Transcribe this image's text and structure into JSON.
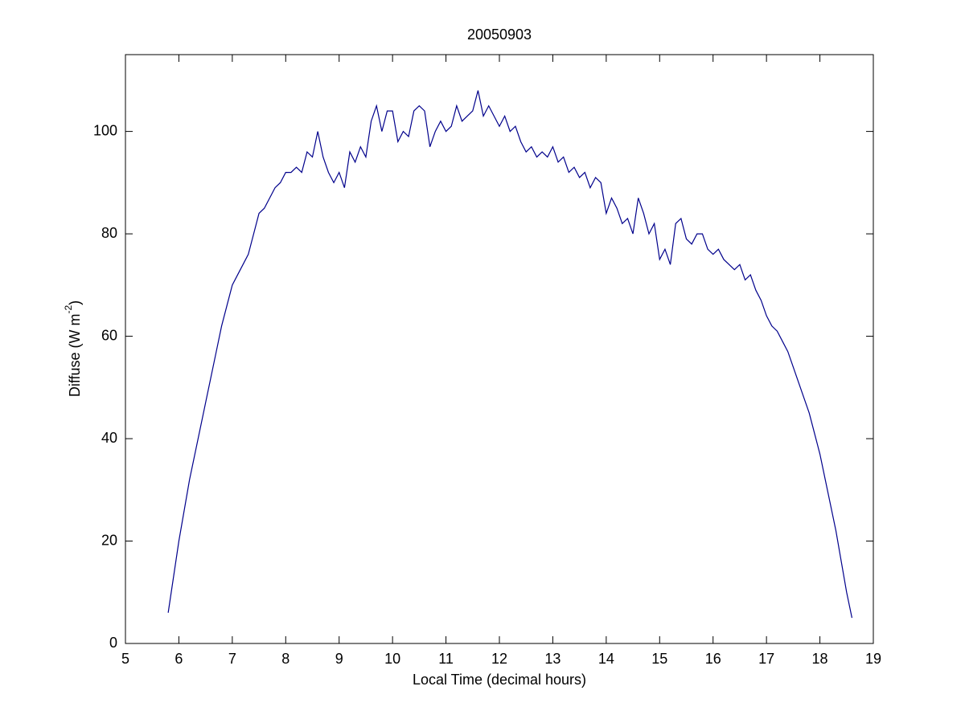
{
  "chart_data": {
    "type": "line",
    "title": "20050903",
    "xlabel": "Local Time (decimal hours)",
    "ylabel": "Diffuse (W m",
    "ylabel_superscript": "-2",
    "ylabel_end": ")",
    "xlim": [
      5,
      19
    ],
    "xticks": [
      5,
      6,
      7,
      8,
      9,
      10,
      11,
      12,
      13,
      14,
      15,
      16,
      17,
      18,
      19
    ],
    "ylim": [
      0,
      115
    ],
    "yticks": [
      0,
      20,
      40,
      60,
      80,
      100
    ],
    "grid": false,
    "x": [
      5.8,
      5.9,
      6.0,
      6.1,
      6.2,
      6.3,
      6.4,
      6.5,
      6.6,
      6.7,
      6.8,
      6.9,
      7.0,
      7.1,
      7.2,
      7.3,
      7.4,
      7.5,
      7.6,
      7.7,
      7.8,
      7.9,
      8.0,
      8.1,
      8.2,
      8.3,
      8.4,
      8.5,
      8.6,
      8.7,
      8.8,
      8.9,
      9.0,
      9.1,
      9.2,
      9.3,
      9.4,
      9.5,
      9.6,
      9.7,
      9.8,
      9.9,
      10.0,
      10.1,
      10.2,
      10.3,
      10.4,
      10.5,
      10.6,
      10.7,
      10.8,
      10.9,
      11.0,
      11.1,
      11.2,
      11.3,
      11.4,
      11.5,
      11.6,
      11.7,
      11.8,
      11.9,
      12.0,
      12.1,
      12.2,
      12.3,
      12.4,
      12.5,
      12.6,
      12.7,
      12.8,
      12.9,
      13.0,
      13.1,
      13.2,
      13.3,
      13.4,
      13.5,
      13.6,
      13.7,
      13.8,
      13.9,
      14.0,
      14.1,
      14.2,
      14.3,
      14.4,
      14.5,
      14.6,
      14.7,
      14.8,
      14.9,
      15.0,
      15.1,
      15.2,
      15.3,
      15.4,
      15.5,
      15.6,
      15.7,
      15.8,
      15.9,
      16.0,
      16.1,
      16.2,
      16.3,
      16.4,
      16.5,
      16.6,
      16.7,
      16.8,
      16.9,
      17.0,
      17.1,
      17.2,
      17.3,
      17.4,
      17.5,
      17.6,
      17.7,
      17.8,
      17.9,
      18.0,
      18.1,
      18.2,
      18.3,
      18.4,
      18.5,
      18.6
    ],
    "series": [
      {
        "color": "#00008b",
        "values": [
          6,
          13,
          20,
          26,
          32,
          37,
          42,
          47,
          52,
          57,
          62,
          66,
          70,
          72,
          74,
          76,
          80,
          84,
          85,
          87,
          89,
          90,
          92,
          92,
          93,
          92,
          96,
          95,
          100,
          95,
          92,
          90,
          92,
          89,
          96,
          94,
          97,
          95,
          102,
          105,
          100,
          104,
          104,
          98,
          100,
          99,
          104,
          105,
          104,
          97,
          100,
          102,
          100,
          101,
          105,
          102,
          103,
          104,
          108,
          103,
          105,
          103,
          101,
          103,
          100,
          101,
          98,
          96,
          97,
          95,
          96,
          95,
          97,
          94,
          95,
          92,
          93,
          91,
          92,
          89,
          91,
          90,
          84,
          87,
          85,
          82,
          83,
          80,
          87,
          84,
          80,
          82,
          75,
          77,
          74,
          82,
          83,
          79,
          78,
          80,
          80,
          77,
          76,
          77,
          75,
          74,
          73,
          74,
          71,
          72,
          69,
          67,
          64,
          62,
          61,
          59,
          57,
          54,
          51,
          48,
          45,
          41,
          37,
          32,
          27,
          22,
          16,
          10,
          5
        ]
      }
    ]
  }
}
